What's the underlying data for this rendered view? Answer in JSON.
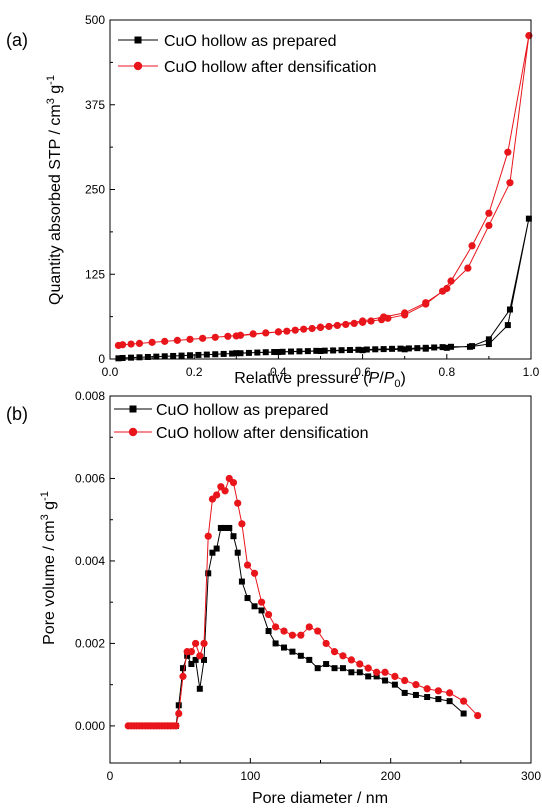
{
  "colors": {
    "series_prepared": "#000000",
    "series_densified": "#e8151b"
  },
  "chart_data": [
    {
      "type": "line",
      "panel_label": "(a)",
      "xlabel_prefix": "Relative pressure (",
      "xlabel_var_P": "P",
      "xlabel_slash": "/",
      "xlabel_var_P0": "P",
      "xlabel_sub": "0",
      "xlabel_suffix": ")",
      "ylabel_main": "Quantity absorbed STP / cm",
      "ylabel_sup1": "3",
      "ylabel_unit": " g",
      "ylabel_sup2": "-1",
      "xlim": [
        0.0,
        1.0
      ],
      "ylim": [
        0,
        500
      ],
      "xticks": [
        "0.0",
        "0.2",
        "0.4",
        "0.6",
        "0.8",
        "1.0"
      ],
      "yticks": [
        "0",
        "125",
        "250",
        "375",
        "500"
      ],
      "legend_position": "top-left",
      "series": [
        {
          "name": "CuO hollow as prepared",
          "marker": "square",
          "color": "#000000",
          "x": [
            0.02,
            0.03,
            0.05,
            0.07,
            0.09,
            0.11,
            0.13,
            0.15,
            0.17,
            0.19,
            0.21,
            0.23,
            0.25,
            0.27,
            0.29,
            0.31,
            0.33,
            0.35,
            0.37,
            0.39,
            0.41,
            0.43,
            0.45,
            0.47,
            0.49,
            0.51,
            0.53,
            0.55,
            0.57,
            0.59,
            0.61,
            0.63,
            0.65,
            0.67,
            0.69,
            0.71,
            0.73,
            0.75,
            0.77,
            0.79,
            0.81,
            0.855,
            0.9,
            0.945,
            0.995,
            0.95,
            0.9,
            0.86,
            0.8,
            0.75,
            0.7,
            0.6,
            0.5,
            0.4,
            0.3
          ],
          "y": [
            1,
            1.5,
            2,
            2.5,
            3,
            3.5,
            4,
            4.5,
            5,
            5.5,
            6,
            6.5,
            7,
            7.5,
            8,
            8.5,
            9,
            9.5,
            10,
            10.3,
            10.6,
            11,
            11.3,
            11.6,
            12,
            12.3,
            12.6,
            13,
            13.3,
            13.6,
            14,
            14.3,
            14.6,
            15,
            15.3,
            15.6,
            16,
            16.5,
            17,
            17.5,
            18,
            18,
            22,
            50,
            207,
            73,
            29,
            19,
            16.5,
            15.2,
            14.3,
            13,
            11.8,
            10.3,
            8.6
          ]
        },
        {
          "name": "CuO hollow after densification",
          "marker": "circle",
          "color": "#e8151b",
          "x": [
            0.02,
            0.03,
            0.05,
            0.07,
            0.1,
            0.13,
            0.16,
            0.19,
            0.22,
            0.25,
            0.28,
            0.31,
            0.34,
            0.37,
            0.4,
            0.42,
            0.44,
            0.46,
            0.48,
            0.5,
            0.52,
            0.54,
            0.56,
            0.58,
            0.6,
            0.62,
            0.645,
            0.66,
            0.7,
            0.75,
            0.79,
            0.81,
            0.86,
            0.9,
            0.945,
            0.995,
            0.95,
            0.9,
            0.85,
            0.8,
            0.75,
            0.7,
            0.65,
            0.6,
            0.5,
            0.4,
            0.3
          ],
          "y": [
            20,
            21,
            22,
            23,
            24.5,
            26,
            27.5,
            29,
            30.5,
            32,
            33.5,
            35,
            37,
            38.5,
            40,
            41,
            42.5,
            44,
            45,
            46.5,
            48,
            49.5,
            51,
            52.5,
            54,
            56,
            58,
            60,
            65,
            81,
            100,
            115,
            167,
            215,
            305,
            477,
            260,
            197,
            134,
            104,
            83,
            68,
            62,
            56,
            47,
            40,
            34
          ]
        }
      ]
    },
    {
      "type": "line",
      "panel_label": "(b)",
      "xlabel": "Pore diameter / nm",
      "ylabel_main": "Pore volume / cm",
      "ylabel_sup1": "3",
      "ylabel_unit": " g",
      "ylabel_sup2": "-1",
      "xlim": [
        0,
        300
      ],
      "ylim": [
        -0.0009,
        0.008
      ],
      "xticks": [
        "0",
        "100",
        "200",
        "300"
      ],
      "yticks": [
        "0.000",
        "0.002",
        "0.004",
        "0.006",
        "0.008"
      ],
      "legend_position": "top-left",
      "series": [
        {
          "name": "CuO hollow as prepared",
          "marker": "square",
          "color": "#000000",
          "x": [
            15,
            17,
            19,
            21,
            23,
            25,
            27,
            29,
            31,
            33,
            35,
            37,
            39,
            41,
            43,
            45,
            47,
            49,
            52,
            55,
            58,
            61,
            64,
            67,
            70,
            73,
            76,
            79,
            82,
            85,
            88,
            91,
            94,
            98,
            103,
            108,
            113,
            118,
            124,
            130,
            136,
            142,
            148,
            154,
            160,
            166,
            172,
            178,
            184,
            190,
            196,
            203,
            210,
            218,
            226,
            234,
            242,
            252
          ],
          "y": [
            0,
            0,
            0,
            0,
            0,
            0,
            0,
            0,
            0,
            0,
            0,
            0,
            0,
            0,
            0,
            0,
            0,
            0.0005,
            0.0014,
            0.0017,
            0.0015,
            0.0016,
            0.0009,
            0.0016,
            0.0037,
            0.0042,
            0.0043,
            0.0048,
            0.0048,
            0.0048,
            0.0046,
            0.0042,
            0.0035,
            0.0031,
            0.0029,
            0.0028,
            0.0023,
            0.002,
            0.0019,
            0.0018,
            0.0017,
            0.0016,
            0.0014,
            0.0015,
            0.0014,
            0.0014,
            0.0013,
            0.0013,
            0.0012,
            0.0012,
            0.0011,
            0.001,
            0.0008,
            0.00075,
            0.0007,
            0.00065,
            0.0006,
            0.0003
          ]
        },
        {
          "name": "CuO hollow after densification",
          "marker": "circle",
          "color": "#e8151b",
          "x": [
            13,
            15,
            17,
            19,
            21,
            23,
            25,
            27,
            29,
            31,
            33,
            35,
            37,
            39,
            41,
            43,
            45,
            47,
            49,
            52,
            55,
            58,
            61,
            64,
            67,
            70,
            73,
            76,
            79,
            82,
            85,
            88,
            91,
            94,
            98,
            103,
            108,
            113,
            118,
            124,
            130,
            136,
            142,
            148,
            154,
            160,
            166,
            172,
            178,
            184,
            190,
            196,
            203,
            210,
            218,
            226,
            234,
            242,
            252,
            262
          ],
          "y": [
            0,
            0,
            0,
            0,
            0,
            0,
            0,
            0,
            0,
            0,
            0,
            0,
            0,
            0,
            0,
            0,
            0,
            0,
            0.0003,
            0.0012,
            0.0018,
            0.0018,
            0.002,
            0.0017,
            0.002,
            0.0046,
            0.0055,
            0.0056,
            0.0058,
            0.0057,
            0.006,
            0.0059,
            0.0054,
            0.0049,
            0.0039,
            0.0037,
            0.003,
            0.0027,
            0.0024,
            0.0023,
            0.0022,
            0.0022,
            0.0024,
            0.0023,
            0.002,
            0.0018,
            0.0017,
            0.0016,
            0.0015,
            0.0014,
            0.0013,
            0.0013,
            0.0012,
            0.0011,
            0.001,
            0.0009,
            0.00085,
            0.0008,
            0.0006,
            0.00025
          ]
        }
      ]
    }
  ]
}
